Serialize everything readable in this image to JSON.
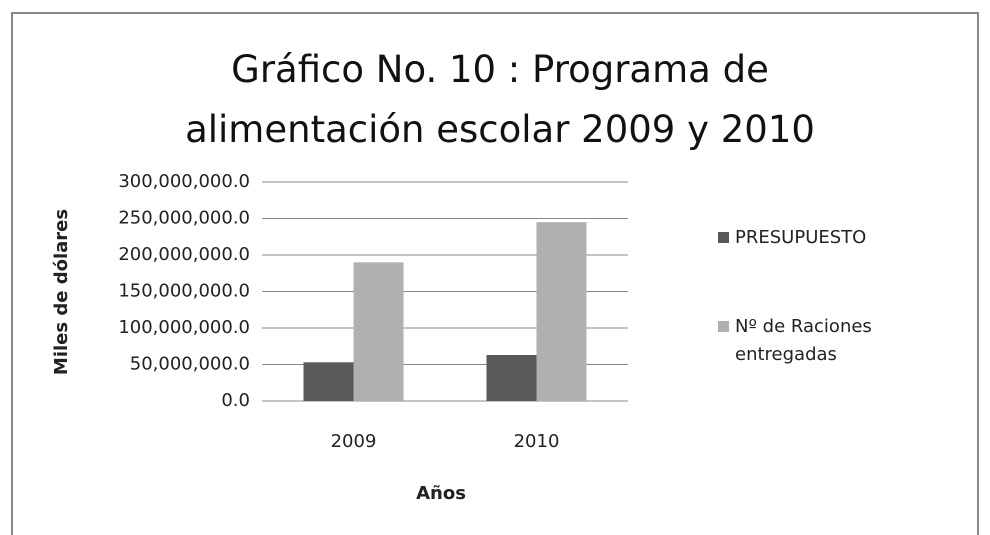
{
  "chart_data": {
    "type": "bar",
    "title": "Gráfico No. 10 : Programa de alimentación escolar 2009 y 2010",
    "y_label": "Miles de dólares",
    "x_label": "Años",
    "categories": [
      "2009",
      "2010"
    ],
    "series": [
      {
        "name": "PRESUPUESTO",
        "color": "#595959",
        "values": [
          53000000,
          63000000
        ]
      },
      {
        "name": "Nº de Raciones entregadas",
        "color": "#b0b0b0",
        "values": [
          190000000,
          245000000
        ]
      }
    ],
    "ylim": [
      0,
      300000000
    ],
    "yticks": [
      {
        "value": 0,
        "label": "0.0"
      },
      {
        "value": 50000000,
        "label": "50,000,000.0"
      },
      {
        "value": 100000000,
        "label": "100,000,000.0"
      },
      {
        "value": 150000000,
        "label": "150,000,000.0"
      },
      {
        "value": 200000000,
        "label": "200,000,000.0"
      },
      {
        "value": 250000000,
        "label": "250,000,000.0"
      },
      {
        "value": 300000000,
        "label": "300,000,000.0"
      }
    ],
    "grid": true,
    "legend": "right"
  }
}
